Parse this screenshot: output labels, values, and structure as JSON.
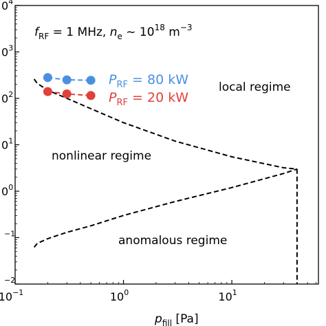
{
  "chart_data": {
    "type": "line",
    "xlabel_base": "p",
    "xlabel_sub": "fill",
    "xlabel_unit": " [Pa]",
    "xscale": "log",
    "yscale": "log",
    "xlim": [
      0.1,
      63
    ],
    "ylim": [
      0.01,
      10000
    ],
    "x_ticks": [
      {
        "value": 0.1,
        "base": "10",
        "exp": "−1"
      },
      {
        "value": 1,
        "base": "10",
        "exp": "0"
      },
      {
        "value": 10,
        "base": "10",
        "exp": "1"
      }
    ],
    "y_ticks": [
      {
        "value": 10000,
        "label": "0",
        "exp": "4"
      },
      {
        "value": 1000,
        "label": "0",
        "exp": "3"
      },
      {
        "value": 100,
        "label": "0",
        "exp": "2"
      },
      {
        "value": 10,
        "label": "0",
        "exp": "1"
      },
      {
        "value": 1,
        "label": "0",
        "exp": "0"
      },
      {
        "value": 0.1,
        "label": "",
        "exp": "−1"
      },
      {
        "value": 0.01,
        "label": "",
        "exp": "−2"
      }
    ],
    "header": {
      "f_sym": "f",
      "f_sub": "RF",
      "f_val": " = 1 MHz, ",
      "n_sym": "n",
      "n_sub": "e",
      "n_val": " ~ 10",
      "n_exp": "18",
      "n_unit": " m",
      "n_unit_exp": "−3"
    },
    "region_labels": {
      "local": "local regime",
      "nonlinear": "nonlinear regime",
      "anomalous": "anomalous regime"
    },
    "boundaries": [
      {
        "name": "upper-boundary",
        "x": [
          0.15,
          0.16,
          0.2,
          0.3,
          0.5,
          1,
          3,
          10,
          30,
          40
        ],
        "y": [
          260,
          210,
          150,
          100,
          60,
          30,
          12,
          5.5,
          3.2,
          3.0
        ]
      },
      {
        "name": "lower-boundary",
        "x": [
          0.15,
          0.16,
          0.2,
          0.3,
          0.5,
          1,
          3,
          10,
          30,
          40
        ],
        "y": [
          0.062,
          0.075,
          0.095,
          0.13,
          0.18,
          0.3,
          0.6,
          1.2,
          2.4,
          3.0
        ]
      },
      {
        "name": "vertical-boundary",
        "x": [
          40,
          40
        ],
        "y": [
          3.0,
          0.01
        ]
      }
    ],
    "series": [
      {
        "name_sym": "P",
        "name_sub": "RF",
        "name_val": " = 80 kW",
        "color": "#4a90e2",
        "x": [
          0.2,
          0.3,
          0.5
        ],
        "y": [
          280,
          250,
          245
        ]
      },
      {
        "name_sym": "P",
        "name_sub": "RF",
        "name_val": " = 20 kW",
        "color": "#e0413a",
        "x": [
          0.2,
          0.3,
          0.5
        ],
        "y": [
          140,
          125,
          115
        ]
      }
    ],
    "legend_placement": "inline, next to series (top-left)",
    "grid": false
  }
}
